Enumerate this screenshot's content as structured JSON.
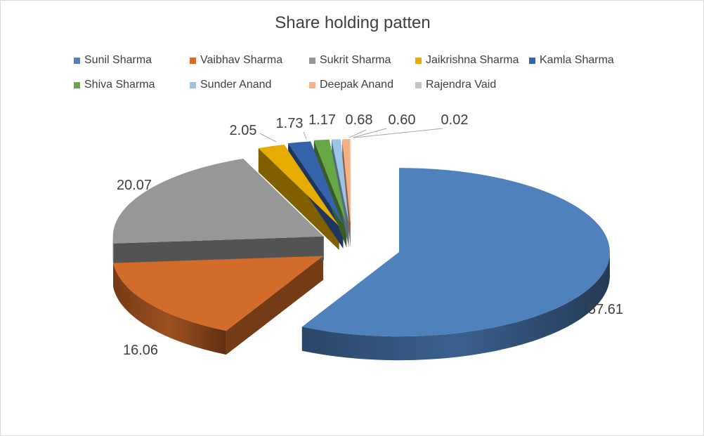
{
  "chart_data": {
    "type": "pie",
    "title": "Share holding patten",
    "categories": [
      "Sunil Sharma",
      "Vaibhav Sharma",
      "Sukrit Sharma",
      "Jaikrishna Sharma",
      "Kamla Sharma",
      "Shiva Sharma",
      "Sunder Anand",
      "Deepak Anand",
      "Rajendra Vaid"
    ],
    "values": [
      57.61,
      16.06,
      20.07,
      2.05,
      1.73,
      1.17,
      0.68,
      0.6,
      0.02
    ],
    "data_labels": [
      "57.61",
      "16.06",
      "20.07",
      "2.05",
      "1.73",
      "1.17",
      "0.68",
      "0.60",
      "0.02"
    ],
    "colors": [
      "#4f81bd",
      "#d36b2a",
      "#979797",
      "#e6ad00",
      "#3462ab",
      "#65a844",
      "#9dc3e6",
      "#f4b183",
      "#c3c3c3"
    ],
    "style": "3d-exploded",
    "legend_position": "top"
  }
}
